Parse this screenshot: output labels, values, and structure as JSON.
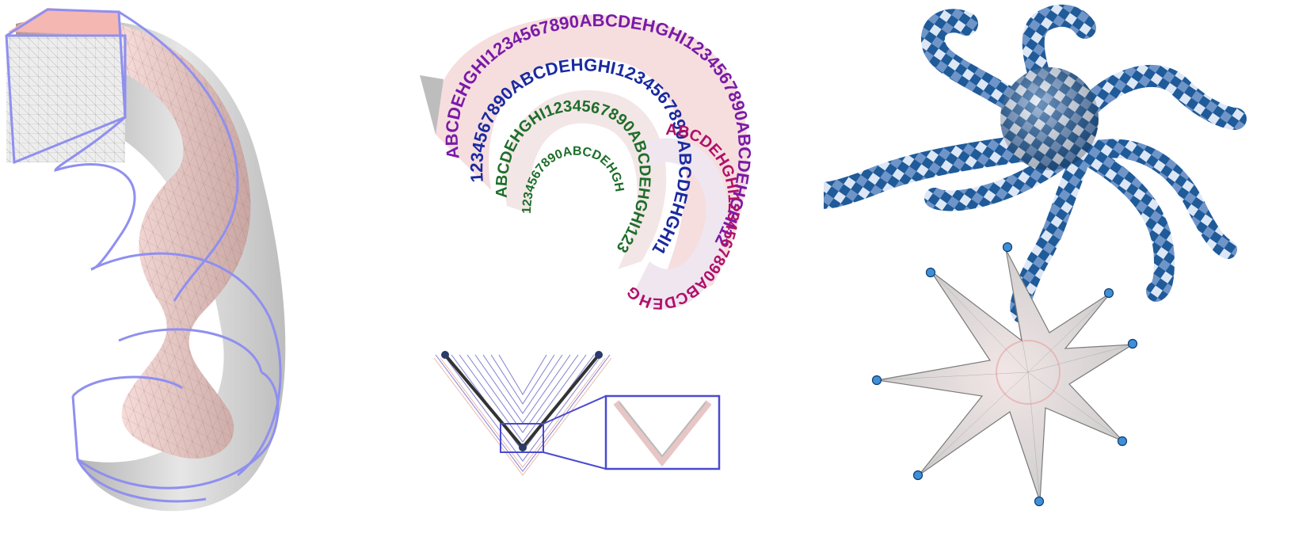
{
  "figure": {
    "panels": [
      {
        "id": "twisted-tube",
        "description_icon": "mesh-deformation-icon"
      },
      {
        "id": "rolled-strip",
        "description_icon": "text-texture-icon"
      },
      {
        "id": "octopus",
        "description_icon": "checker-texture-icon"
      }
    ]
  },
  "strip_text": {
    "outer": "ABCDEHGHI1234567890ABCDEHGHI1234567890ABCDEHGHI1234567890",
    "middle": "1234567890ABCDEHGHI1234567890ABCDEHGHI1234567890",
    "inner": "ABCDEHGHI1234567890ABCDEHGHI1234567890",
    "core": "1234567890ABCDEHGH"
  },
  "colors": {
    "cage": "#8f8ff0",
    "tube": "#f1c9c6",
    "gray": "#c9c9c9",
    "strip": "#f6dede",
    "text_magenta": "#b0106a",
    "text_blue": "#1a2aa0",
    "text_green": "#1e6e2a",
    "text_purple": "#7a1aa8",
    "checker_dark": "#1f5a99",
    "checker_light": "#dce6f5",
    "handle": "#3f8fd8",
    "zoom_box": "#4a4ad0"
  }
}
